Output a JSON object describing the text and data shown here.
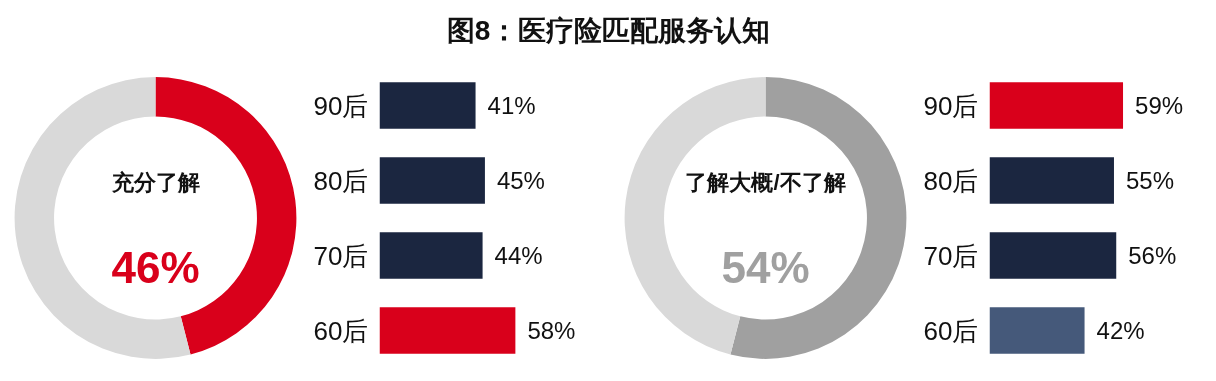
{
  "chart_data": [
    {
      "type": "other",
      "title": "图8：医疗险匹配服务认知"
    },
    {
      "type": "donut",
      "categories": [
        "充分了解",
        null
      ],
      "values": [
        46,
        54
      ],
      "colors": [
        "#d9001b",
        "#d9d9d9"
      ],
      "value_labels": [
        "46%",
        null
      ]
    },
    {
      "type": "bar",
      "orientation": "horizontal",
      "categories": [
        "90后",
        "80后",
        "70后",
        "60后"
      ],
      "values": [
        41,
        45,
        44,
        58
      ],
      "colors": [
        "#1b2640",
        "#1b2640",
        "#1b2640",
        "#d9001b"
      ],
      "value_labels": [
        "41%",
        "45%",
        "44%",
        "58%"
      ],
      "tick_labels": "y",
      "grid": false
    },
    {
      "type": "donut",
      "categories": [
        "了解大概/不了解",
        null
      ],
      "values": [
        54,
        46
      ],
      "colors": [
        "#a0a0a0",
        "#d9d9d9"
      ],
      "value_labels": [
        "54%",
        null
      ]
    },
    {
      "type": "bar",
      "orientation": "horizontal",
      "categories": [
        "90后",
        "80后",
        "70后",
        "60后"
      ],
      "values": [
        59,
        55,
        56,
        42
      ],
      "colors": [
        "#d9001b",
        "#1b2640",
        "#1b2640",
        "#45597a"
      ],
      "value_labels": [
        "59%",
        "55%",
        "56%",
        "42%"
      ],
      "tick_labels": "y",
      "grid": false
    }
  ]
}
